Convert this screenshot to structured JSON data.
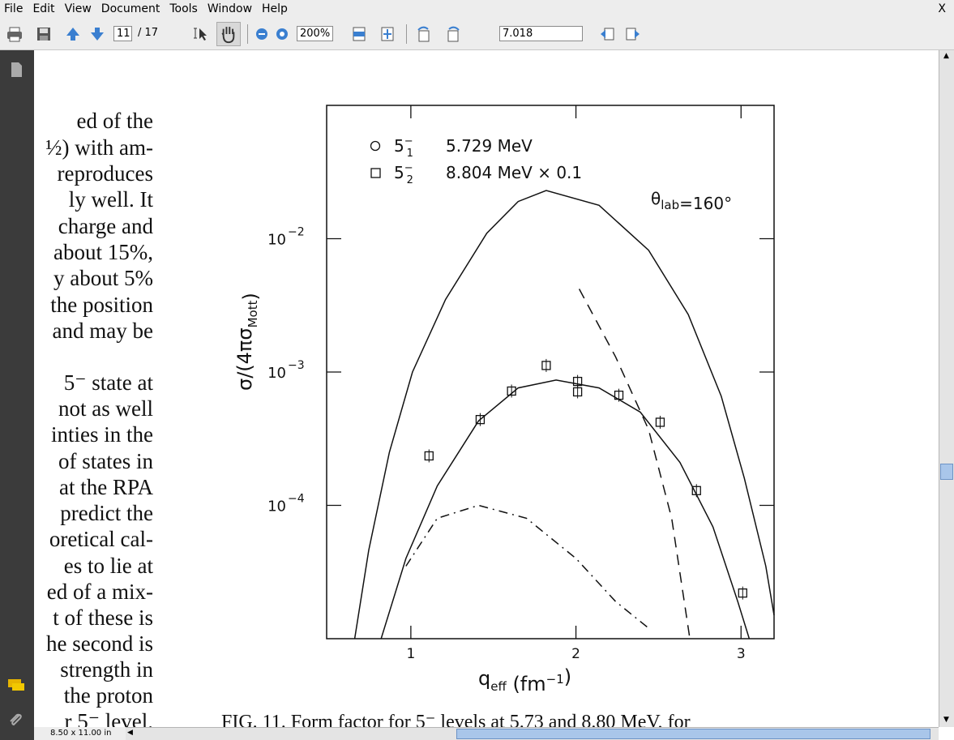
{
  "menu": [
    "File",
    "Edit",
    "View",
    "Document",
    "Tools",
    "Window",
    "Help"
  ],
  "toolbar": {
    "page": "11",
    "page_total": "/ 17",
    "zoom": "200%",
    "search": "7.018"
  },
  "status": "8.50 x 11.00 in",
  "document": {
    "text_lines": [
      "ed of the",
      "½) with am-",
      "reproduces",
      "ly well. It",
      "charge and",
      "about 15%,",
      "y about 5%",
      "the position",
      "and may be",
      "5⁻ state at",
      "not as well",
      "inties in the",
      "of states in",
      "at the RPA",
      "predict the",
      "oretical cal-",
      "es to lie at",
      "ed of a mix-",
      "t of these is",
      "he second is",
      "strength in",
      "the proton",
      "r 5⁻ level."
    ],
    "caption": "FIG. 11.  Form factor for 5⁻ levels at 5.73 and 8.80 MeV, for"
  },
  "chart_data": {
    "type": "line",
    "yscale": "log",
    "xlim": [
      0.49,
      3.2
    ],
    "ylim": [
      1e-05,
      0.1
    ],
    "xticks": [
      1,
      2,
      3
    ],
    "yticks": [
      {
        "value": 0.01,
        "label": "10",
        "exponent": "−2"
      },
      {
        "value": 0.001,
        "label": "10",
        "exponent": "−3"
      },
      {
        "value": 0.0001,
        "label": "10",
        "exponent": "−4"
      }
    ],
    "x_label": [
      "q",
      "eff",
      " (fm",
      "−1",
      ")"
    ],
    "y_label": [
      "σ/(4πσ",
      "Mott",
      ")"
    ],
    "annotation": [
      "θ",
      "lab",
      "=160°"
    ],
    "legend": [
      {
        "marker": "circle",
        "state": "5",
        "sub": "1",
        "sup": "−",
        "energy": "5.729 MeV"
      },
      {
        "marker": "square",
        "state": "5",
        "sub": "2",
        "sup": "−",
        "energy": "8.804 MeV × 0.1"
      }
    ],
    "series": [
      {
        "color": "#111111",
        "style": "solid",
        "x": [
          0.66,
          0.745,
          0.87,
          1.01,
          1.21,
          1.46,
          1.65,
          1.82,
          2.14,
          2.44,
          2.68,
          2.88,
          3.02,
          3.15,
          3.2
        ],
        "values": [
          1e-05,
          4.6e-05,
          0.00025,
          0.001,
          0.0035,
          0.011,
          0.019,
          0.023,
          0.0178,
          0.0082,
          0.0027,
          0.00066,
          0.00016,
          3.5e-05,
          1.5e-05
        ]
      },
      {
        "color": "#111111",
        "style": "solid",
        "x": [
          0.82,
          0.97,
          1.16,
          1.41,
          1.65,
          1.88,
          2.14,
          2.39,
          2.63,
          2.83,
          2.98,
          3.05
        ],
        "values": [
          1e-05,
          4e-05,
          0.00014,
          0.00043,
          0.00076,
          0.00087,
          0.00076,
          0.0005,
          0.00021,
          6.9e-05,
          1.9e-05,
          1e-05
        ]
      },
      {
        "color": "#111111",
        "style": "dashed",
        "x": [
          2.02,
          2.24,
          2.44,
          2.58,
          2.69
        ],
        "values": [
          0.0042,
          0.0013,
          0.00037,
          8e-05,
          1e-05
        ]
      },
      {
        "color": "#111111",
        "style": "dash-dot",
        "x": [
          0.97,
          1.16,
          1.41,
          1.7,
          2.0,
          2.24,
          2.44
        ],
        "values": [
          3.5e-05,
          8e-05,
          0.0001,
          8e-05,
          4e-05,
          1.9e-05,
          1.2e-05
        ]
      },
      {
        "color": "#111111",
        "marker": "square",
        "x": [
          1.11,
          1.42,
          1.61,
          1.82,
          2.01,
          2.01,
          2.26,
          2.51,
          2.73,
          3.01
        ],
        "values": [
          0.000235,
          0.00044,
          0.00072,
          0.00112,
          0.00085,
          0.00071,
          0.00067,
          0.00042,
          0.000129,
          2.2e-05
        ]
      }
    ]
  }
}
